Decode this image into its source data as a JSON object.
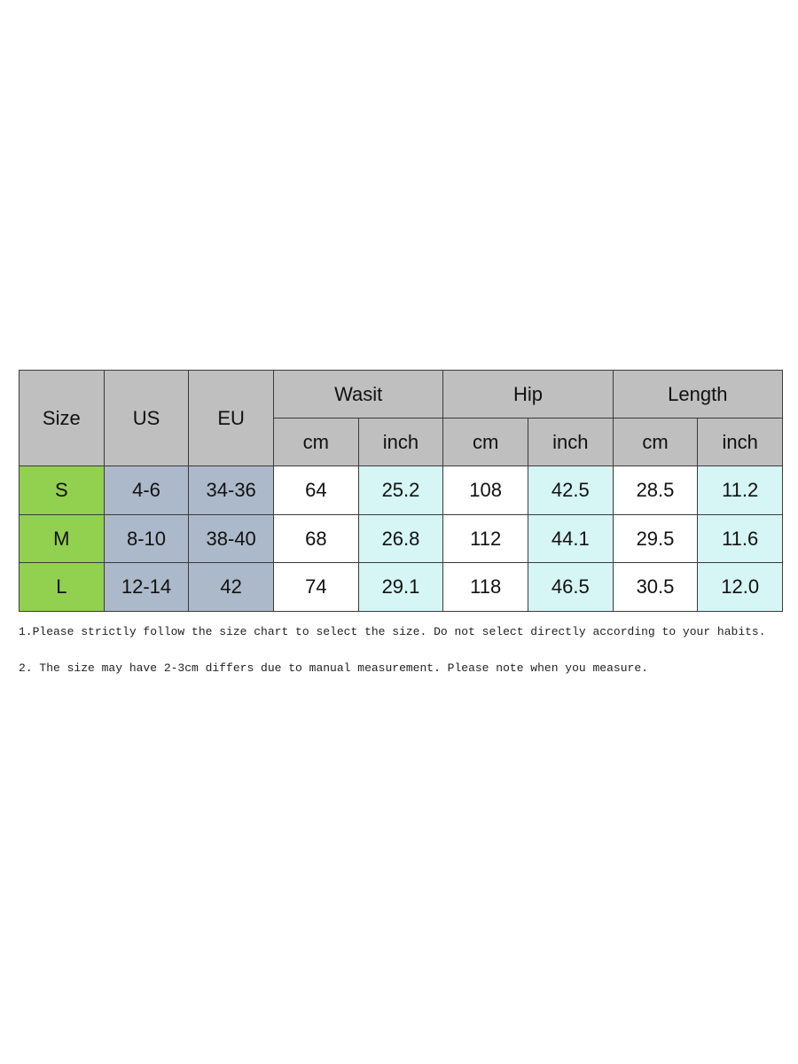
{
  "table": {
    "headers": [
      "Size",
      "US",
      "EU"
    ],
    "groups": [
      "Wasit",
      "Hip",
      "Length"
    ],
    "units": [
      "cm",
      "inch",
      "cm",
      "inch",
      "cm",
      "inch"
    ],
    "rows": [
      [
        "S",
        "4-6",
        "34-36",
        "64",
        "25.2",
        "108",
        "42.5",
        "28.5",
        "11.2"
      ],
      [
        "M",
        "8-10",
        "38-40",
        "68",
        "26.8",
        "112",
        "44.1",
        "29.5",
        "11.6"
      ],
      [
        "L",
        "12-14",
        "42",
        "74",
        "29.1",
        "118",
        "46.5",
        "30.5",
        "12.0"
      ]
    ]
  },
  "notes": [
    "1.Please strictly follow the size chart to select the size. Do not select directly according to your habits.",
    "2. The size may have 2-3cm differs due to manual measurement. Please note when you measure."
  ]
}
